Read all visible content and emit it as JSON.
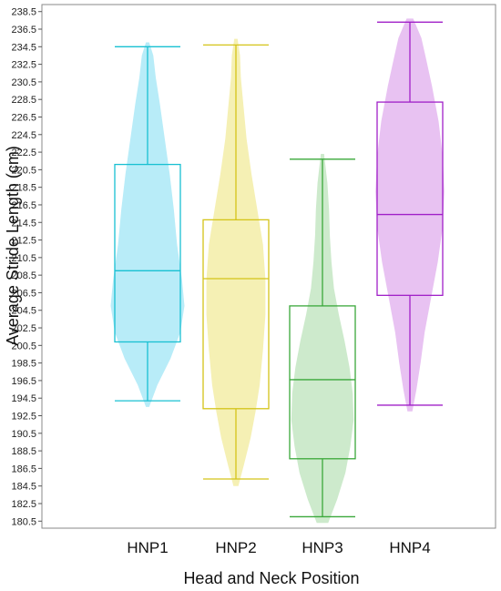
{
  "chart_data": {
    "type": "violin-box",
    "xlabel": "Head and Neck Position",
    "ylabel": "Average Stride Length (cm)",
    "categories": [
      "HNP1",
      "HNP2",
      "HNP3",
      "HNP4"
    ],
    "ylim": [
      179.7,
      239.3
    ],
    "yticks": [
      "180.5",
      "182.5",
      "184.5",
      "186.5",
      "188.5",
      "190.5",
      "192.5",
      "194.5",
      "196.5",
      "198.5",
      "200.5",
      "202.5",
      "204.5",
      "206.5",
      "208.5",
      "210.5",
      "212.5",
      "214.5",
      "216.5",
      "218.5",
      "220.5",
      "222.5",
      "224.5",
      "226.5",
      "228.5",
      "230.5",
      "232.5",
      "234.5",
      "236.5",
      "238.5"
    ],
    "grid": false,
    "legend": "none",
    "series": [
      {
        "category": "HNP1",
        "color": "#18c0d2",
        "fill": "#b8ecf8",
        "whisker_low": 194.2,
        "q1": 200.9,
        "median": 209.0,
        "q3": 221.1,
        "whisker_high": 234.5,
        "violin_min": 193.5,
        "violin_max": 235.0,
        "density_y": [
          193.5,
          196.0,
          199.0,
          202.0,
          205.0,
          208.0,
          212.0,
          216.0,
          220.0,
          224.0,
          228.0,
          231.0,
          233.5,
          235.0
        ],
        "density_w": [
          0.02,
          0.12,
          0.28,
          0.4,
          0.45,
          0.42,
          0.36,
          0.32,
          0.27,
          0.21,
          0.15,
          0.1,
          0.07,
          0.02
        ]
      },
      {
        "category": "HNP2",
        "color": "#d4c418",
        "fill": "#f5f0b4",
        "whisker_low": 185.3,
        "q1": 193.3,
        "median": 208.1,
        "q3": 214.8,
        "whisker_high": 234.7,
        "violin_min": 184.5,
        "violin_max": 235.4,
        "density_y": [
          184.5,
          187.0,
          190.0,
          193.0,
          196.0,
          200.0,
          204.0,
          208.0,
          212.0,
          216.0,
          220.0,
          224.0,
          228.0,
          231.0,
          233.5,
          235.4
        ],
        "density_w": [
          0.03,
          0.1,
          0.18,
          0.24,
          0.29,
          0.33,
          0.36,
          0.36,
          0.33,
          0.26,
          0.19,
          0.13,
          0.09,
          0.06,
          0.05,
          0.02
        ]
      },
      {
        "category": "HNP3",
        "color": "#3aa83a",
        "fill": "#cdeacc",
        "whisker_low": 181.0,
        "q1": 187.6,
        "median": 196.6,
        "q3": 205.0,
        "whisker_high": 221.7,
        "violin_min": 180.3,
        "violin_max": 222.3,
        "density_y": [
          180.3,
          183.0,
          186.0,
          189.0,
          192.0,
          195.0,
          198.0,
          201.0,
          204.0,
          207.0,
          210.0,
          213.0,
          216.0,
          219.0,
          222.3
        ],
        "density_w": [
          0.07,
          0.18,
          0.28,
          0.34,
          0.38,
          0.37,
          0.33,
          0.27,
          0.2,
          0.14,
          0.11,
          0.09,
          0.08,
          0.06,
          0.02
        ]
      },
      {
        "category": "HNP4",
        "color": "#a020c8",
        "fill": "#e8c2f2",
        "whisker_low": 193.7,
        "q1": 206.2,
        "median": 215.4,
        "q3": 228.2,
        "whisker_high": 237.3,
        "violin_min": 193.0,
        "violin_max": 237.7,
        "density_y": [
          193.0,
          195.5,
          198.5,
          202.0,
          206.0,
          210.0,
          214.0,
          218.0,
          222.0,
          226.0,
          230.0,
          233.0,
          235.5,
          237.7
        ],
        "density_w": [
          0.03,
          0.08,
          0.13,
          0.18,
          0.26,
          0.34,
          0.4,
          0.42,
          0.4,
          0.35,
          0.27,
          0.2,
          0.14,
          0.04
        ]
      }
    ]
  }
}
